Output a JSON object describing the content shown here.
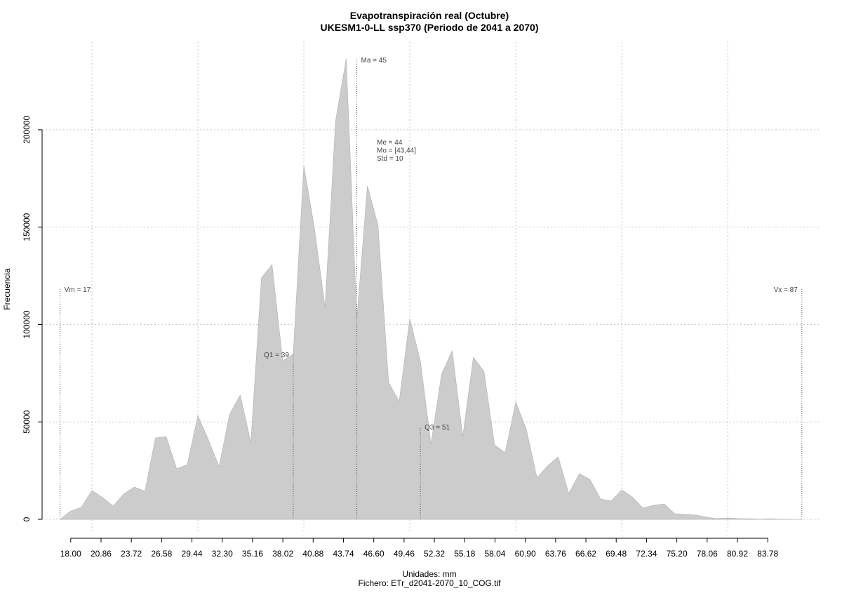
{
  "chart_data": {
    "type": "area",
    "title": "Evapotranspiración real (Octubre)",
    "subtitle": "UKESM1-0-LL ssp370 (Periodo de 2041 a 2070)",
    "xlabel": "Unidades: mm",
    "footer": "Fichero: ETr_d2041-2070_10_COG.tif",
    "ylabel": "Frecuencia",
    "color": "#cccccc",
    "x": [
      17,
      18,
      19,
      20,
      21,
      22,
      23,
      24,
      25,
      26,
      27,
      28,
      29,
      30,
      31,
      32,
      33,
      34,
      35,
      36,
      37,
      38,
      39,
      40,
      41,
      42,
      43,
      44,
      45,
      46,
      47,
      48,
      49,
      50,
      51,
      52,
      53,
      54,
      55,
      56,
      57,
      58,
      59,
      60,
      61,
      62,
      63,
      64,
      65,
      66,
      67,
      68,
      69,
      70,
      71,
      72,
      73,
      74,
      75,
      76,
      77,
      78,
      79,
      80,
      81,
      82,
      83,
      84,
      85,
      86,
      87
    ],
    "values": [
      0,
      4300,
      6100,
      14800,
      11200,
      6800,
      13000,
      16600,
      14400,
      41800,
      42500,
      25900,
      28100,
      53300,
      40700,
      27000,
      54000,
      63800,
      39300,
      124000,
      130800,
      81400,
      84700,
      181600,
      149500,
      108800,
      204700,
      236400,
      102700,
      171200,
      151000,
      70300,
      60500,
      103100,
      81100,
      38600,
      74600,
      86500,
      42500,
      83200,
      76000,
      38200,
      34200,
      60200,
      46100,
      21300,
      27400,
      32100,
      13300,
      23400,
      20500,
      10500,
      9400,
      15100,
      11500,
      5800,
      7200,
      7900,
      2900,
      2500,
      2200,
      1100,
      400,
      700,
      400,
      300,
      100,
      300,
      100,
      0,
      0
    ],
    "xlim": [
      15.3,
      88.8
    ],
    "ylim": [
      -7200,
      245000
    ],
    "yticks": [
      0,
      50000,
      100000,
      150000,
      200000
    ],
    "xticks": [
      {
        "value": 18,
        "label": "18.00"
      },
      {
        "value": 20.86,
        "label": "20.86"
      },
      {
        "value": 23.72,
        "label": "23.72"
      },
      {
        "value": 26.58,
        "label": "26.58"
      },
      {
        "value": 29.44,
        "label": "29.44"
      },
      {
        "value": 32.3,
        "label": "32.30"
      },
      {
        "value": 35.16,
        "label": "35.16"
      },
      {
        "value": 38.02,
        "label": "38.02"
      },
      {
        "value": 40.88,
        "label": "40.88"
      },
      {
        "value": 43.74,
        "label": "43.74"
      },
      {
        "value": 46.6,
        "label": "46.60"
      },
      {
        "value": 49.46,
        "label": "49.46"
      },
      {
        "value": 52.32,
        "label": "52.32"
      },
      {
        "value": 55.18,
        "label": "55.18"
      },
      {
        "value": 58.04,
        "label": "58.04"
      },
      {
        "value": 60.9,
        "label": "60.90"
      },
      {
        "value": 63.76,
        "label": "63.76"
      },
      {
        "value": 66.62,
        "label": "66.62"
      },
      {
        "value": 69.48,
        "label": "69.48"
      },
      {
        "value": 72.34,
        "label": "72.34"
      },
      {
        "value": 75.2,
        "label": "75.20"
      },
      {
        "value": 78.06,
        "label": "78.06"
      },
      {
        "value": 80.92,
        "label": "80.92"
      },
      {
        "value": 83.78,
        "label": "83.78"
      }
    ],
    "xgrid": [
      20,
      30,
      40,
      50,
      60,
      70,
      80
    ],
    "grid": true,
    "annotations": [
      {
        "text": "Vm = 17",
        "x": 17
      },
      {
        "text": "Vx = 87",
        "x": 87
      },
      {
        "text": "Ma = 45",
        "x": 45
      },
      {
        "text": "Q1 = 39",
        "x": 39
      },
      {
        "text": "Q3 = 51",
        "x": 51
      }
    ],
    "stats_text": [
      "Me = 44",
      "Mo = [43,44]",
      "Std = 10"
    ]
  }
}
